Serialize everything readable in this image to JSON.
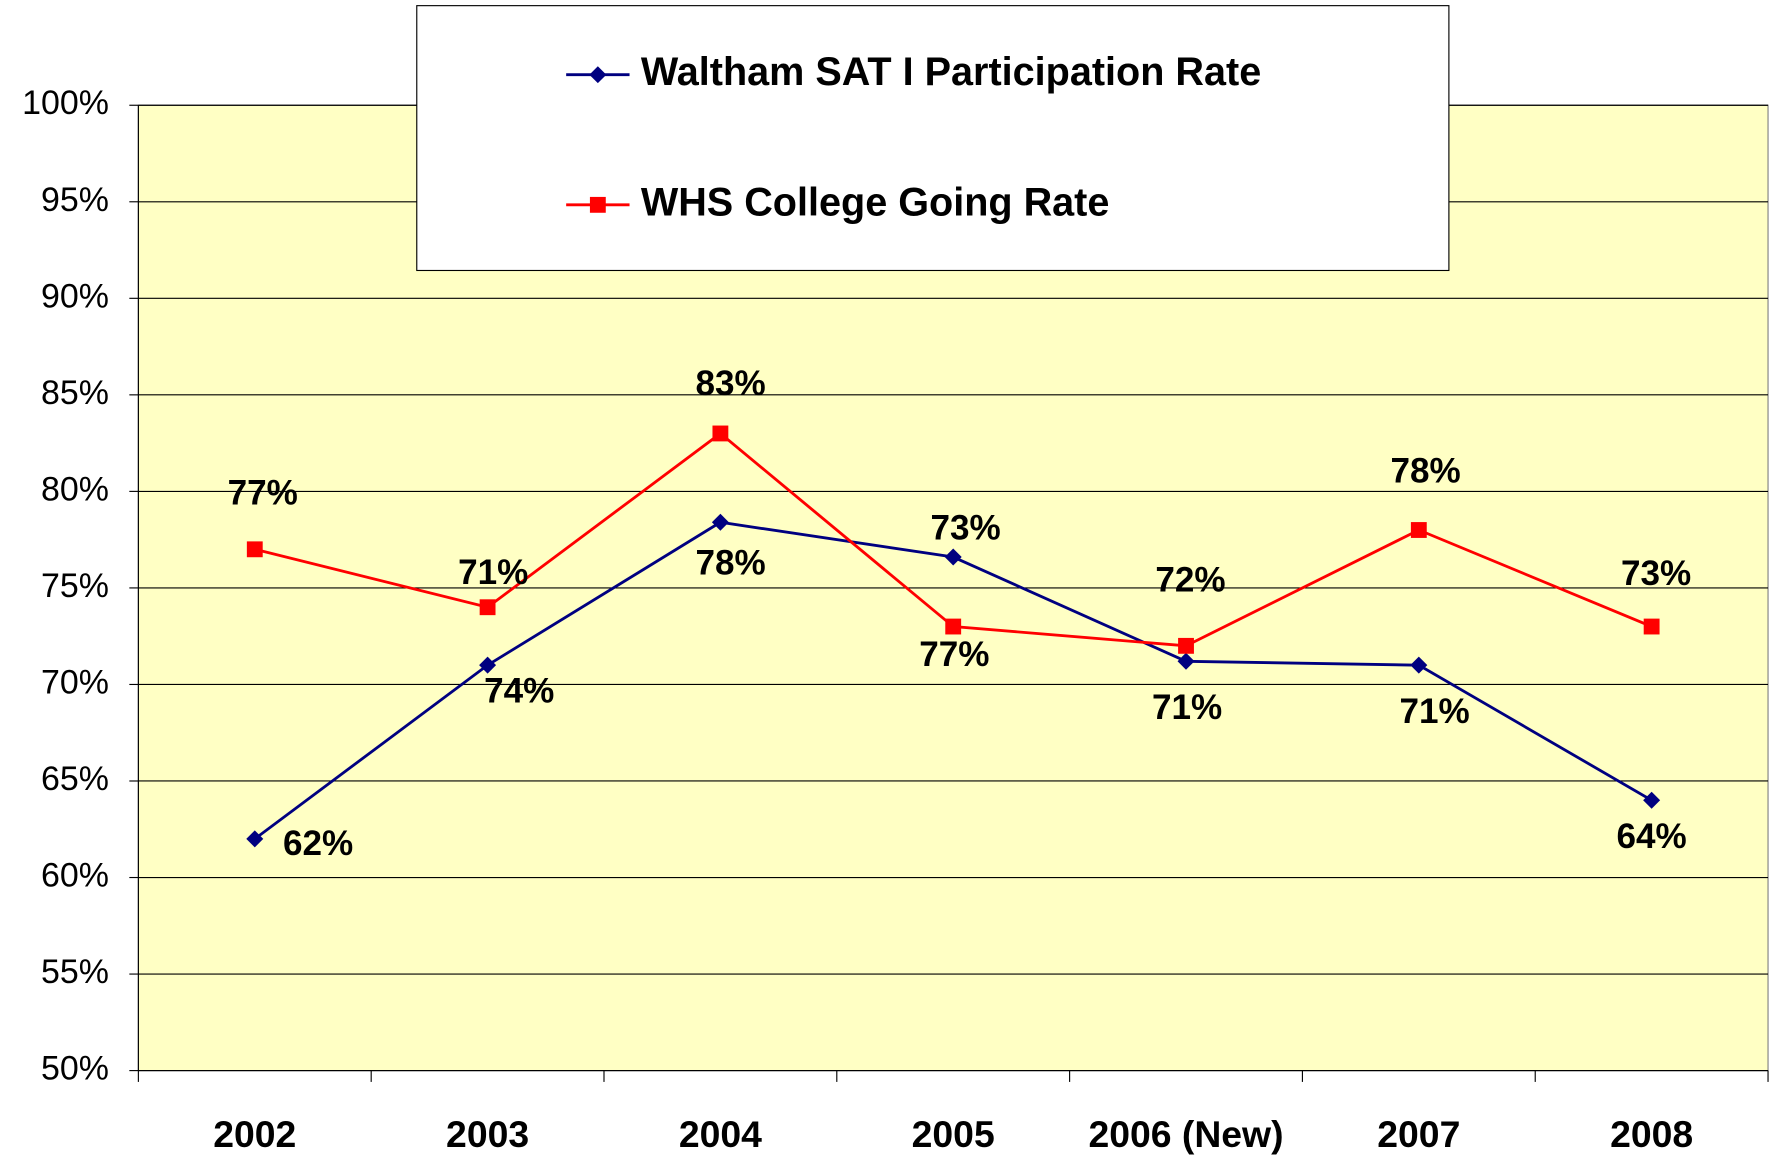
{
  "chart_data": {
    "type": "line",
    "categories": [
      "2002",
      "2003",
      "2004",
      "2005",
      "2006 (New)",
      "2007",
      "2008"
    ],
    "series": [
      {
        "name": "Waltham SAT I Participation Rate",
        "color": "#000080",
        "values": [
          62,
          71,
          78.4,
          76.6,
          71.2,
          71,
          64
        ],
        "value_labels": [
          "62%",
          "71%",
          "78%",
          "77%",
          "71%",
          "71%",
          "64%"
        ]
      },
      {
        "name": "WHS College Going Rate",
        "color": "#ff0000",
        "values": [
          77,
          74,
          83,
          73,
          72,
          78,
          73
        ],
        "value_labels": [
          "77%",
          "74%",
          "83%",
          "73%",
          "72%",
          "78%",
          "73%"
        ]
      }
    ],
    "ylim": [
      50,
      100
    ],
    "yticks": [
      {
        "value": 50,
        "label": "50%"
      },
      {
        "value": 55,
        "label": "55%"
      },
      {
        "value": 60,
        "label": "60%"
      },
      {
        "value": 65,
        "label": "65%"
      },
      {
        "value": 70,
        "label": "70%"
      },
      {
        "value": 75,
        "label": "75%"
      },
      {
        "value": 80,
        "label": "80%"
      },
      {
        "value": 85,
        "label": "85%"
      },
      {
        "value": 90,
        "label": "90%"
      },
      {
        "value": 95,
        "label": "95%"
      },
      {
        "value": 100,
        "label": "100%"
      }
    ],
    "grid": true,
    "plot_background": "#ffffc4"
  }
}
